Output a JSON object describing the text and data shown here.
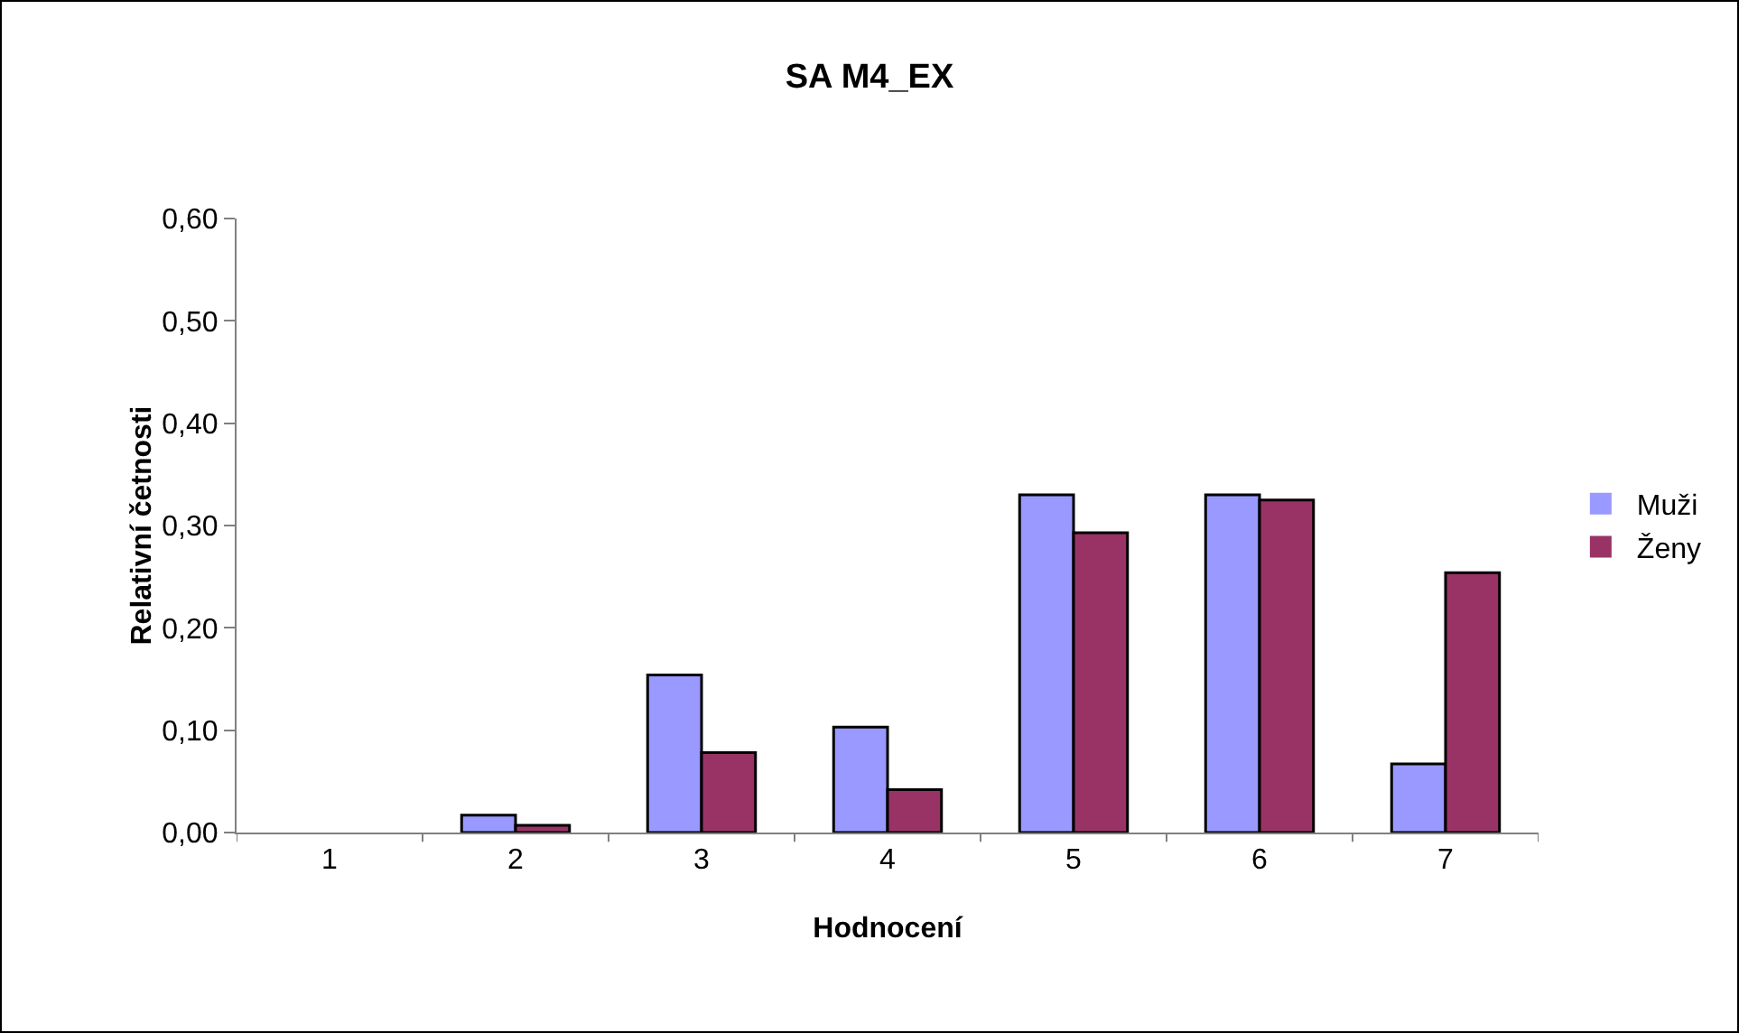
{
  "chart_data": {
    "type": "bar",
    "title": "SA M4_EX",
    "xlabel": "Hodnocení",
    "ylabel": "Relativní četnosti",
    "categories": [
      "1",
      "2",
      "3",
      "4",
      "5",
      "6",
      "7"
    ],
    "series": [
      {
        "name": "Muži",
        "color": "#9999ff",
        "values": [
          0,
          0.017,
          0.154,
          0.103,
          0.33,
          0.33,
          0.067
        ]
      },
      {
        "name": "Ženy",
        "color": "#993366",
        "values": [
          0,
          0.007,
          0.078,
          0.042,
          0.293,
          0.325,
          0.254
        ]
      }
    ],
    "ylim": [
      0,
      0.6
    ],
    "yticks": [
      {
        "value": 0,
        "label": "0,00"
      },
      {
        "value": 0.1,
        "label": "0,10"
      },
      {
        "value": 0.2,
        "label": "0,20"
      },
      {
        "value": 0.3,
        "label": "0,30"
      },
      {
        "value": 0.4,
        "label": "0,40"
      },
      {
        "value": 0.5,
        "label": "0,50"
      },
      {
        "value": 0.6,
        "label": "0,60"
      }
    ],
    "grid": false,
    "legend": "right"
  }
}
